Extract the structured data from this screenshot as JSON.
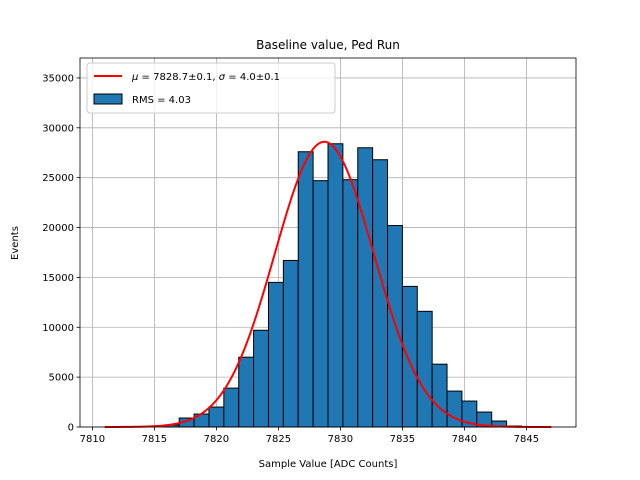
{
  "chart_data": {
    "type": "bar",
    "title": "Baseline value, Ped Run",
    "xlabel": "Sample Value [ADC Counts]",
    "ylabel": "Events",
    "xlim": [
      7809,
      7849
    ],
    "ylim": [
      0,
      37000
    ],
    "xticks": [
      7810,
      7815,
      7820,
      7825,
      7830,
      7835,
      7840,
      7845
    ],
    "yticks": [
      0,
      5000,
      10000,
      15000,
      20000,
      25000,
      30000,
      35000
    ],
    "grid": true,
    "legend_position": "top-left",
    "bin_width": 1.2,
    "histogram": {
      "name": "RMS = 4.03",
      "color": "#1f77b4",
      "edgecolor": "#000000",
      "bin_left_edges": [
        7811.0,
        7812.2,
        7813.4,
        7814.6,
        7815.8,
        7817.0,
        7818.2,
        7819.4,
        7820.6,
        7821.8,
        7823.0,
        7824.2,
        7825.4,
        7826.6,
        7827.8,
        7829.0,
        7830.2,
        7831.4,
        7832.6,
        7833.8,
        7835.0,
        7836.2,
        7837.4,
        7838.6,
        7839.8,
        7841.0,
        7842.2,
        7843.4,
        7844.6,
        7845.8
      ],
      "counts": [
        0,
        0,
        0,
        0,
        200,
        900,
        1300,
        2000,
        3900,
        7000,
        9700,
        14500,
        16700,
        27600,
        24700,
        28400,
        24800,
        28000,
        26800,
        20200,
        14100,
        11600,
        6300,
        3600,
        2600,
        1500,
        600,
        100,
        0,
        0
      ]
    },
    "fit": {
      "name": "μ = 7828.7±0.1, σ = 4.0±0.1",
      "color": "#ff0000",
      "mu": 7828.7,
      "sigma": 4.0,
      "amplitude": 28600,
      "x_range": [
        7811,
        7847
      ]
    },
    "legend": {
      "fit_label_prefix": "μ",
      "fit_label_rest": " = 7828.7±0.1, ",
      "fit_label_sigma": "σ",
      "fit_label_tail": " = 4.0±0.1",
      "hist_label": "RMS = 4.03"
    }
  }
}
